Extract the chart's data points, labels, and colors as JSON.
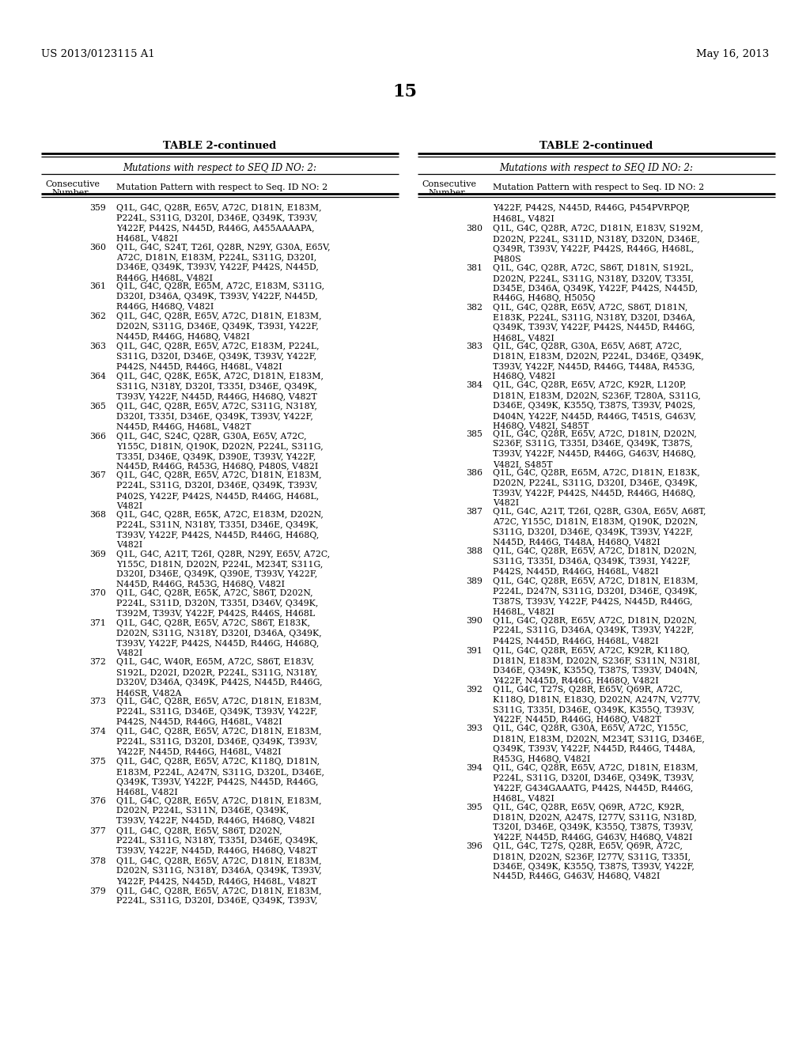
{
  "header_left": "US 2013/0123115 A1",
  "header_right": "May 16, 2013",
  "page_number": "15",
  "table_title": "TABLE 2-continued",
  "col_header": "Mutations with respect to SEQ ID NO: 2:",
  "col_label_num": "Consecutive\nNumber",
  "col_label_mut": "Mutation Pattern with respect to Seq. ID NO: 2",
  "background": "#ffffff",
  "text_color": "#000000",
  "left_entries": [
    [
      359,
      "Q1L, G4C, Q28R, E65V, A72C, D181N, E183M,\nP224L, S311G, D320I, D346E, Q349K, T393V,\nY422F, P442S, N445D, R446G, A455AAAAPA,\nH468L, V482I"
    ],
    [
      360,
      "Q1L, G4C, S24T, T26I, Q28R, N29Y, G30A, E65V,\nA72C, D181N, E183M, P224L, S311G, D320I,\nD346E, Q349K, T393V, Y422F, P442S, N445D,\nR446G, H468L, V482I"
    ],
    [
      361,
      "Q1L, G4C, Q28R, E65M, A72C, E183M, S311G,\nD320I, D346A, Q349K, T393V, Y422F, N445D,\nR446G, H468Q, V482I"
    ],
    [
      362,
      "Q1L, G4C, Q28R, E65V, A72C, D181N, E183M,\nD202N, S311G, D346E, Q349K, T393I, Y422F,\nN445D, R446G, H468Q, V482I"
    ],
    [
      363,
      "Q1L, G4C, Q28R, E65V, A72C, E183M, P224L,\nS311G, D320I, D346E, Q349K, T393V, Y422F,\nP442S, N445D, R446G, H468L, V482I"
    ],
    [
      364,
      "Q1L, G4C, Q28K, E65K, A72C, D181N, E183M,\nS311G, N318Y, D320I, T335I, D346E, Q349K,\nT393V, Y422F, N445D, R446G, H468Q, V482T"
    ],
    [
      365,
      "Q1L, G4C, Q28R, E65V, A72C, S311G, N318Y,\nD320I, T335I, D346E, Q349K, T393V, Y422F,\nN445D, R446G, H468L, V482T"
    ],
    [
      366,
      "Q1L, G4C, S24C, Q28R, G30A, E65V, A72C,\nY155C, D181N, Q190K, D202N, P224L, S311G,\nT335I, D346E, Q349K, D390E, T393V, Y422F,\nN445D, R446G, R453G, H468Q, P480S, V482I"
    ],
    [
      367,
      "Q1L, G4C, Q28R, E65V, A72C, D181N, E183M,\nP224L, S311G, D320I, D346E, Q349K, T393V,\nP402S, Y422F, P442S, N445D, R446G, H468L,\nV482I"
    ],
    [
      368,
      "Q1L, G4C, Q28R, E65K, A72C, E183M, D202N,\nP224L, S311N, N318Y, T335I, D346E, Q349K,\nT393V, Y422F, P442S, N445D, R446G, H468Q,\nV482I"
    ],
    [
      369,
      "Q1L, G4C, A21T, T26I, Q28R, N29Y, E65V, A72C,\nY155C, D181N, D202N, P224L, M234T, S311G,\nD320I, D346E, Q349K, Q390E, T393V, Y422F,\nN445D, R446G, R453G, H468Q, V482I"
    ],
    [
      370,
      "Q1L, G4C, Q28R, E65K, A72C, S86T, D202N,\nP224L, S311D, D320N, T335I, D346V, Q349K,\nT392M, T393V, Y422F, P442S, R446S, H468L"
    ],
    [
      371,
      "Q1L, G4C, Q28R, E65V, A72C, S86T, E183K,\nD202N, S311G, N318Y, D320I, D346A, Q349K,\nT393V, Y422F, P442S, N445D, R446G, H468Q,\nV482I"
    ],
    [
      372,
      "Q1L, G4C, W40R, E65M, A72C, S86T, E183V,\nS192L, D202I, D202R, P224L, S311G, N318Y,\nD320V, D346A, Q349K, P442S, N445D, R446G,\nH46SR, V482A"
    ],
    [
      373,
      "Q1L, G4C, Q28R, E65V, A72C, D181N, E183M,\nP224L, S311G, D346E, Q349K, T393V, Y422F,\nP442S, N445D, R446G, H468L, V482I"
    ],
    [
      374,
      "Q1L, G4C, Q28R, E65V, A72C, D181N, E183M,\nP224L, S311G, D320I, D346E, Q349K, T393V,\nY422F, N445D, R446G, H468L, V482I"
    ],
    [
      375,
      "Q1L, G4C, Q28R, E65V, A72C, K118Q, D181N,\nE183M, P224L, A247N, S311G, D320L, D346E,\nQ349K, T393V, Y422F, P442S, N445D, R446G,\nH468L, V482I"
    ],
    [
      376,
      "Q1L, G4C, Q28R, E65V, A72C, D181N, E183M,\nD202N, P224L, S311N, D346E, Q349K,\nT393V, Y422F, N445D, R446G, H468Q, V482I"
    ],
    [
      377,
      "Q1L, G4C, Q28R, E65V, S86T, D202N,\nP224L, S311G, N318Y, T335I, D346E, Q349K,\nT393V, Y422F, N445D, R446G, H468Q, V482T"
    ],
    [
      378,
      "Q1L, G4C, Q28R, E65V, A72C, D181N, E183M,\nD202N, S311G, N318Y, D346A, Q349K, T393V,\nY422F, P442S, N445D, R446G, H468L, V482T"
    ],
    [
      379,
      "Q1L, G4C, Q28R, E65V, A72C, D181N, E183M,\nP224L, S311G, D320I, D346E, Q349K, T393V,"
    ]
  ],
  "right_entries": [
    [
      379,
      "Y422F, P442S, N445D, R446G, P454PVRPQP,\nH468L, V482I"
    ],
    [
      380,
      "Q1L, G4C, Q28R, A72C, D181N, E183V, S192M,\nD202N, P224L, S311D, N318Y, D320N, D346E,\nQ349R, T393V, Y422F, P442S, R446G, H468L,\nP480S"
    ],
    [
      381,
      "Q1L, G4C, Q28R, A72C, S86T, D181N, S192L,\nD202N, P224L, S311G, N318Y, D320V, T335I,\nD345E, D346A, Q349K, Y422F, P442S, N445D,\nR446G, H468Q, H505Q"
    ],
    [
      382,
      "Q1L, G4C, Q28R, E65V, A72C, S86T, D181N,\nE183K, P224L, S311G, N318Y, D320I, D346A,\nQ349K, T393V, Y422F, P442S, N445D, R446G,\nH468L, V482I"
    ],
    [
      383,
      "Q1L, G4C, Q28R, G30A, E65V, A68T, A72C,\nD181N, E183M, D202N, P224L, D346E, Q349K,\nT393V, Y422F, N445D, R446G, T448A, R453G,\nH468Q, V482I"
    ],
    [
      384,
      "Q1L, G4C, Q28R, E65V, A72C, K92R, L120P,\nD181N, E183M, D202N, S236F, T280A, S311G,\nD346E, Q349K, K355Q, T387S, T393V, P402S,\nD404N, Y422F, N445D, R446G, T451S, G463V,\nH468Q, V482I, S485T"
    ],
    [
      385,
      "Q1L, G4C, Q28R, E65V, A72C, D181N, D202N,\nS236F, S311G, T335I, D346E, Q349K, T387S,\nT393V, Y422F, N445D, R446G, G463V, H468Q,\nV482I, S485T"
    ],
    [
      386,
      "Q1L, G4C, Q28R, E65M, A72C, D181N, E183K,\nD202N, P224L, S311G, D320I, D346E, Q349K,\nT393V, Y422F, P442S, N445D, R446G, H468Q,\nV482I"
    ],
    [
      387,
      "Q1L, G4C, A21T, T26I, Q28R, G30A, E65V, A68T,\nA72C, Y155C, D181N, E183M, Q190K, D202N,\nS311G, D320I, D346E, Q349K, T393V, Y422F,\nN445D, R446G, T448A, H468Q, V482I"
    ],
    [
      388,
      "Q1L, G4C, Q28R, E65V, A72C, D181N, D202N,\nS311G, T335I, D346A, Q349K, T393I, Y422F,\nP442S, N445D, R446G, H468L, V482I"
    ],
    [
      389,
      "Q1L, G4C, Q28R, E65V, A72C, D181N, E183M,\nP224L, D247N, S311G, D320I, D346E, Q349K,\nT387S, T393V, Y422F, P442S, N445D, R446G,\nH468L, V482I"
    ],
    [
      390,
      "Q1L, G4C, Q28R, E65V, A72C, D181N, D202N,\nP224L, S311G, D346A, Q349K, T393V, Y422F,\nP442S, N445D, R446G, H468L, V482I"
    ],
    [
      391,
      "Q1L, G4C, Q28R, E65V, A72C, K92R, K118Q,\nD181N, E183M, D202N, S236F, S311N, N318I,\nD346E, Q349K, K355Q, T387S, T393V, D404N,\nY422F, N445D, R446G, H468Q, V482I"
    ],
    [
      392,
      "Q1L, G4C, T27S, Q28R, E65V, Q69R, A72C,\nK118Q, D181N, E183Q, D202N, A247N, V277V,\nS311G, T335I, D346E, Q349K, K355Q, T393V,\nY422F, N445D, R446G, H468Q, V482T"
    ],
    [
      393,
      "Q1L, G4C, Q28R, G30A, E65V, A72C, Y155C,\nD181N, E183M, D202N, M234T, S311G, D346E,\nQ349K, T393V, Y422F, N445D, R446G, T448A,\nR453G, H468Q, V482I"
    ],
    [
      394,
      "Q1L, G4C, Q28R, E65V, A72C, D181N, E183M,\nP224L, S311G, D320I, D346E, Q349K, T393V,\nY422F, G434GAAATG, P442S, N445D, R446G,\nH468L, V482I"
    ],
    [
      395,
      "Q1L, G4C, Q28R, E65V, Q69R, A72C, K92R,\nD181N, D202N, A247S, I277V, S311G, N318D,\nT320I, D346E, Q349K, K355Q, T387S, T393V,\nY422F, N445D, R446G, G463V, H468Q, V482I"
    ],
    [
      396,
      "Q1L, G4C, T27S, Q28R, E65V, Q69R, A72C,\nD181N, D202N, S236F, I277V, S311G, T335I,\nD346E, Q349K, K355Q, T387S, T393V, Y422F,\nN445D, R446G, G463V, H468Q, V482I"
    ]
  ]
}
